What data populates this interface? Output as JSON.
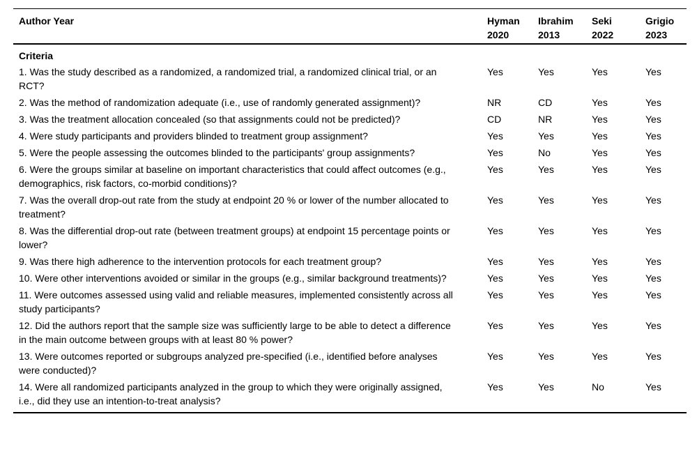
{
  "table": {
    "header": {
      "author_year_label": "Author Year",
      "studies": [
        {
          "name": "Hyman",
          "year": "2020"
        },
        {
          "name": "Ibrahim",
          "year": "2013"
        },
        {
          "name": "Seki",
          "year": "2022"
        },
        {
          "name": "Grigio",
          "year": "2023"
        }
      ]
    },
    "section_label": "Criteria",
    "rows": [
      {
        "criterion": "1. Was the study described as a randomized, a randomized trial, a randomized clinical trial, or an RCT?",
        "values": [
          "Yes",
          "Yes",
          "Yes",
          "Yes"
        ]
      },
      {
        "criterion": "2. Was the method of randomization adequate (i.e., use of randomly generated assignment)?",
        "values": [
          "NR",
          "CD",
          "Yes",
          "Yes"
        ]
      },
      {
        "criterion": "3. Was the treatment allocation concealed (so that assignments could not be predicted)?",
        "values": [
          "CD",
          "NR",
          "Yes",
          "Yes"
        ]
      },
      {
        "criterion": "4. Were study participants and providers blinded to treatment group assignment?",
        "values": [
          "Yes",
          "Yes",
          "Yes",
          "Yes"
        ]
      },
      {
        "criterion": "5. Were the people assessing the outcomes blinded to the participants' group assignments?",
        "values": [
          "Yes",
          "No",
          "Yes",
          "Yes"
        ]
      },
      {
        "criterion": "6. Were the groups similar at baseline on important characteristics that could affect outcomes (e.g., demographics, risk factors, co-morbid conditions)?",
        "values": [
          "Yes",
          "Yes",
          "Yes",
          "Yes"
        ]
      },
      {
        "criterion": "7. Was the overall drop-out rate from the study at endpoint 20 % or lower of the number allocated to treatment?",
        "values": [
          "Yes",
          "Yes",
          "Yes",
          "Yes"
        ]
      },
      {
        "criterion": "8. Was the differential drop-out rate (between treatment groups) at endpoint 15 percentage points or lower?",
        "values": [
          "Yes",
          "Yes",
          "Yes",
          "Yes"
        ]
      },
      {
        "criterion": "9. Was there high adherence to the intervention protocols for each treatment group?",
        "values": [
          "Yes",
          "Yes",
          "Yes",
          "Yes"
        ]
      },
      {
        "criterion": "10. Were other interventions avoided or similar in the groups (e.g., similar background treatments)?",
        "values": [
          "Yes",
          "Yes",
          "Yes",
          "Yes"
        ]
      },
      {
        "criterion": "11. Were outcomes assessed using valid and reliable measures, implemented consistently across all study participants?",
        "values": [
          "Yes",
          "Yes",
          "Yes",
          "Yes"
        ]
      },
      {
        "criterion": "12. Did the authors report that the sample size was sufficiently large to be able to detect a difference in the main outcome between groups with at least 80 % power?",
        "values": [
          "Yes",
          "Yes",
          "Yes",
          "Yes"
        ]
      },
      {
        "criterion": "13. Were outcomes reported or subgroups analyzed pre-specified (i.e., identified before analyses were conducted)?",
        "values": [
          "Yes",
          "Yes",
          "Yes",
          "Yes"
        ]
      },
      {
        "criterion": "14. Were all randomized participants analyzed in the group to which they were originally assigned, i.e., did they use an intention-to-treat analysis?",
        "values": [
          "Yes",
          "Yes",
          "No",
          "Yes"
        ]
      }
    ]
  }
}
